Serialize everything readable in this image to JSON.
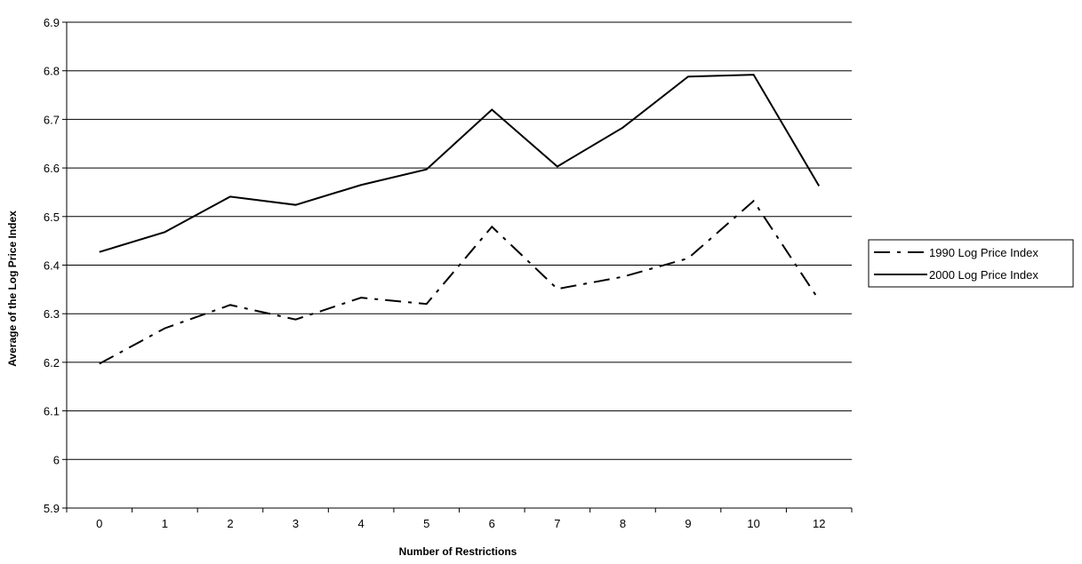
{
  "chart_data": {
    "type": "line",
    "title": "",
    "xlabel": "Number of Restrictions",
    "ylabel": "Average of the Log Price Index",
    "categories": [
      "0",
      "1",
      "2",
      "3",
      "4",
      "5",
      "6",
      "7",
      "8",
      "9",
      "10",
      "12"
    ],
    "ylim": [
      5.9,
      6.9
    ],
    "yticks": [
      "5.9",
      "6",
      "6.1",
      "6.2",
      "6.3",
      "6.4",
      "6.5",
      "6.6",
      "6.7",
      "6.8",
      "6.9"
    ],
    "grid": true,
    "legend_position": "right",
    "series": [
      {
        "name": "1990 Log Price Index",
        "style": "dash-dot",
        "color": "#000000",
        "values": [
          6.197,
          6.27,
          6.318,
          6.288,
          6.333,
          6.32,
          6.479,
          6.351,
          6.376,
          6.414,
          6.532,
          6.328
        ]
      },
      {
        "name": "2000 Log Price Index",
        "style": "solid",
        "color": "#000000",
        "values": [
          6.427,
          6.468,
          6.541,
          6.524,
          6.565,
          6.597,
          6.72,
          6.603,
          6.683,
          6.788,
          6.792,
          6.563
        ]
      }
    ]
  }
}
